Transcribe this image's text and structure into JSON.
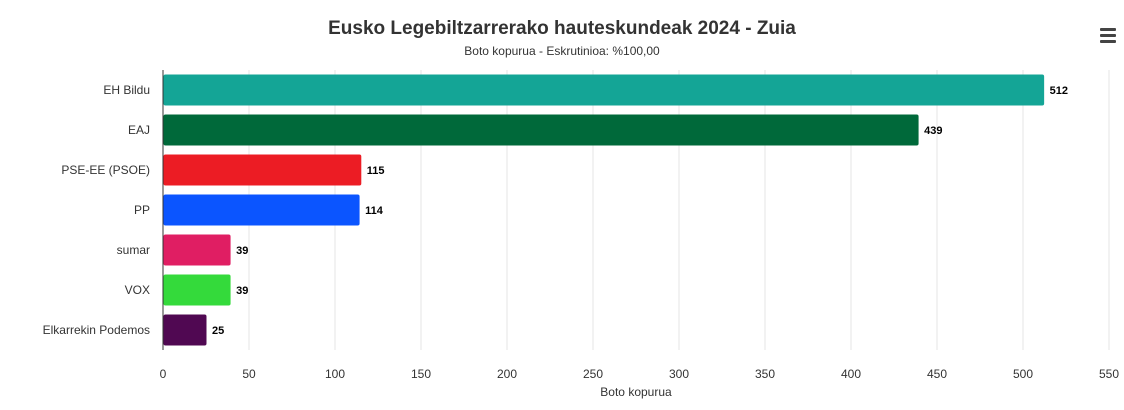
{
  "chart_data": {
    "type": "bar",
    "orientation": "horizontal",
    "title": "Eusko Legebiltzarrerako hauteskundeak 2024 - Zuia",
    "subtitle": "Boto kopurua - Eskrutinioa: %100,00",
    "xlabel": "Boto kopurua",
    "ylabel": "",
    "xlim": [
      0,
      550
    ],
    "xticks": [
      0,
      50,
      100,
      150,
      200,
      250,
      300,
      350,
      400,
      450,
      500,
      550
    ],
    "grid": true,
    "legend": "none",
    "categories": [
      "EH Bildu",
      "EAJ",
      "PSE-EE (PSOE)",
      "PP",
      "sumar",
      "VOX",
      "Elkarrekin Podemos"
    ],
    "values": [
      512,
      439,
      115,
      114,
      39,
      39,
      25
    ],
    "colors": [
      "#14a596",
      "#00693a",
      "#ec1c24",
      "#0b55ff",
      "#e01e63",
      "#34da3b",
      "#500852"
    ]
  },
  "menu": {
    "icon": "hamburger-menu-icon"
  }
}
